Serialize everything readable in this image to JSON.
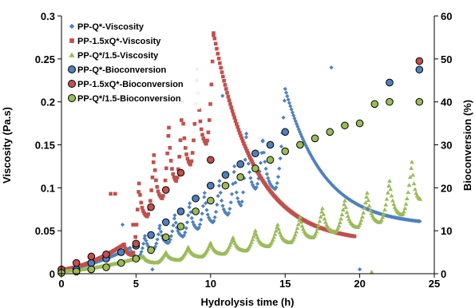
{
  "chart_data": {
    "type": "scatter",
    "title": "",
    "xlabel": "Hydrolysis time (h)",
    "ylabel": "Viscosity (Pa.s)",
    "y2label": "Bioconversion (%)",
    "xlim": [
      0,
      25
    ],
    "ylim": [
      0,
      0.3
    ],
    "y2lim": [
      0,
      60
    ],
    "x_ticks": [
      "0",
      "5",
      "10",
      "15",
      "20",
      "25"
    ],
    "y_ticks": [
      "0",
      "0.05",
      "0.1",
      "0.15",
      "0.2",
      "0.25",
      "0.3"
    ],
    "y2_ticks": [
      "0",
      "10",
      "20",
      "30",
      "40",
      "50",
      "60"
    ],
    "grid": false,
    "legend_position": "top-left",
    "legend": [
      "PP-Q*-Viscosity",
      "PP-1.5xQ*-Viscosity",
      "PP-Q*/1.5-Viscosity",
      "PP-Q*-Bioconversion",
      "PP-1.5xQ*-Bioconversion",
      "PP-Q*/1.5-Bioconversion"
    ],
    "viscosity_series": [
      {
        "name": "PP-Q*-Viscosity",
        "color": "#4F81BD",
        "marker": "diamond",
        "profile": "sawtooth",
        "start_value": 0.005,
        "peaks": [
          [
            4.6,
            0.03
          ],
          [
            5.6,
            0.044
          ],
          [
            6.6,
            0.056
          ],
          [
            7.6,
            0.068
          ],
          [
            8.6,
            0.082
          ],
          [
            9.6,
            0.094
          ],
          [
            10.6,
            0.108
          ],
          [
            11.6,
            0.125
          ],
          [
            12.4,
            0.163
          ],
          [
            13.5,
            0.155
          ],
          [
            15.0,
            0.215
          ]
        ],
        "end_value": 0.056,
        "outliers": [
          [
            4.1,
            0.057
          ],
          [
            10.8,
            0.207
          ],
          [
            16.1,
            0.15
          ],
          [
            18.1,
            0.24
          ],
          [
            6.1,
            0.005
          ],
          [
            20.0,
            0.005
          ]
        ]
      },
      {
        "name": "PP-1.5xQ*-Viscosity",
        "color": "#C0504D",
        "marker": "square",
        "profile": "sawtooth",
        "start_value": 0.005,
        "peaks": [
          [
            4.2,
            0.034
          ],
          [
            5.2,
            0.105
          ],
          [
            6.2,
            0.138
          ],
          [
            7.2,
            0.17
          ],
          [
            8.1,
            0.2
          ],
          [
            9.1,
            0.238
          ],
          [
            10.2,
            0.28
          ]
        ],
        "end_value": 0.036,
        "outliers": [
          [
            3.3,
            0.093
          ],
          [
            3.6,
            0.093
          ],
          [
            4.8,
            0.057
          ]
        ]
      },
      {
        "name": "PP-Q*/1.5-Viscosity",
        "color": "#9BBB59",
        "marker": "triangle",
        "profile": "sawtooth",
        "start_value": 0.003,
        "peaks": [
          [
            5.5,
            0.02
          ],
          [
            7.0,
            0.025
          ],
          [
            8.5,
            0.031
          ],
          [
            10.0,
            0.036
          ],
          [
            11.5,
            0.042
          ],
          [
            13.0,
            0.05
          ],
          [
            14.5,
            0.057
          ],
          [
            16.0,
            0.066
          ],
          [
            17.5,
            0.076
          ],
          [
            19.0,
            0.085
          ],
          [
            20.5,
            0.094
          ],
          [
            22.0,
            0.108
          ],
          [
            23.5,
            0.13
          ]
        ],
        "end_value": 0.085,
        "outliers": [
          [
            20.8,
            0.002
          ]
        ]
      }
    ],
    "bioconversion_series": [
      {
        "name": "PP-Q*-Bioconversion",
        "color": "#4F81BD",
        "marker": "circle",
        "x": [
          0,
          1,
          2,
          3,
          4,
          5,
          6,
          7,
          8,
          9,
          10,
          11,
          12,
          13,
          14,
          15,
          22,
          24
        ],
        "y": [
          0.5,
          1.0,
          2.5,
          3.5,
          5.0,
          6.5,
          9.0,
          12.0,
          14.5,
          17.5,
          20.5,
          23.0,
          25.5,
          28.0,
          30.0,
          33.0,
          44.5,
          47.5
        ]
      },
      {
        "name": "PP-1.5xQ*-Bioconversion",
        "color": "#C0504D",
        "marker": "circle",
        "x": [
          0,
          1,
          2,
          3,
          5,
          6,
          7,
          8,
          10,
          24
        ],
        "y": [
          1.0,
          2.5,
          4.0,
          4.5,
          7.0,
          15.5,
          19.5,
          23.5,
          26.5,
          49.5
        ]
      },
      {
        "name": "PP-Q*/1.5-Bioconversion",
        "color": "#9BBB59",
        "marker": "circle",
        "x": [
          0,
          1,
          2,
          3,
          4,
          5,
          6,
          7,
          8,
          9,
          10,
          11,
          12,
          13,
          14,
          15,
          16,
          17,
          18,
          19,
          20,
          21,
          22,
          24
        ],
        "y": [
          0.2,
          0.5,
          1.0,
          1.5,
          2.5,
          3.5,
          5.5,
          8.5,
          11.0,
          14.5,
          17.0,
          20.5,
          22.5,
          24.5,
          26.5,
          28.5,
          30.0,
          31.5,
          33.0,
          34.5,
          35.0,
          39.5,
          40.0,
          40.0
        ]
      }
    ]
  }
}
